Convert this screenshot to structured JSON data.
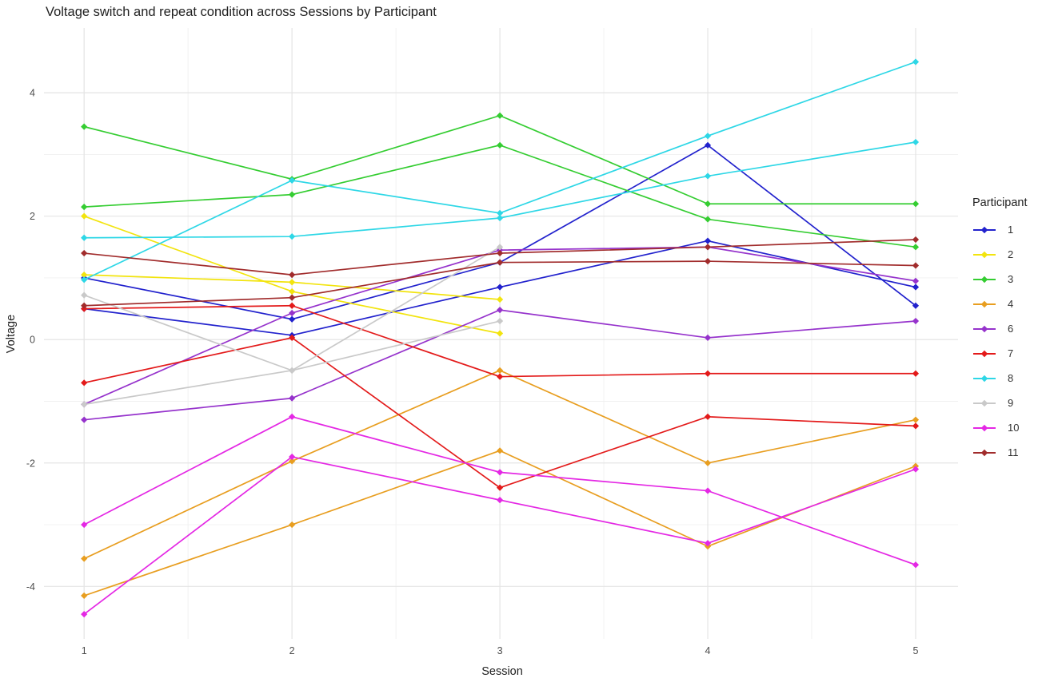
{
  "title": "Voltage switch and repeat condition across Sessions by Participant",
  "chart_data": {
    "type": "line",
    "title": "Voltage switch and repeat condition across Sessions by Participant",
    "xlabel": "Session",
    "ylabel": "Voltage",
    "legend_title": "Participant",
    "legend_position": "right",
    "grid": "on",
    "background": "#ffffff",
    "x": [
      1,
      2,
      3,
      4,
      5
    ],
    "xlim": [
      0.807,
      5.204
    ],
    "ylim": [
      -4.85,
      5.05
    ],
    "xticks_major": [
      1,
      2,
      3,
      4,
      5
    ],
    "xticks_minor": [
      1.5,
      2.5,
      3.5,
      4.5
    ],
    "yticks_major": [
      -4,
      -2,
      0,
      2,
      4
    ],
    "yticks_minor": [
      -3,
      -1,
      1,
      3
    ],
    "marker": "diamond",
    "participants": [
      {
        "id": "1",
        "color": "#2222cd"
      },
      {
        "id": "2",
        "color": "#f2e40e"
      },
      {
        "id": "3",
        "color": "#35cd32"
      },
      {
        "id": "4",
        "color": "#e89e20"
      },
      {
        "id": "6",
        "color": "#9633cc"
      },
      {
        "id": "7",
        "color": "#e31a1a"
      },
      {
        "id": "8",
        "color": "#2ed7e6"
      },
      {
        "id": "9",
        "color": "#c9c9c9"
      },
      {
        "id": "10",
        "color": "#e428e4"
      },
      {
        "id": "11",
        "color": "#a12c2c"
      }
    ],
    "series": [
      {
        "participant": "1",
        "condition": "switch",
        "values": [
          1.0,
          0.33,
          1.25,
          3.15,
          0.55
        ]
      },
      {
        "participant": "1",
        "condition": "repeat",
        "values": [
          0.5,
          0.07,
          0.85,
          1.6,
          0.85
        ]
      },
      {
        "participant": "2",
        "condition": "switch",
        "values": [
          2.0,
          0.78,
          0.1,
          null,
          null
        ]
      },
      {
        "participant": "2",
        "condition": "repeat",
        "values": [
          1.05,
          0.93,
          0.65,
          null,
          null
        ]
      },
      {
        "participant": "3",
        "condition": "switch",
        "values": [
          3.45,
          2.6,
          3.63,
          2.2,
          2.2
        ]
      },
      {
        "participant": "3",
        "condition": "repeat",
        "values": [
          2.15,
          2.35,
          3.15,
          1.95,
          1.5
        ]
      },
      {
        "participant": "4",
        "condition": "switch",
        "values": [
          -3.55,
          -1.97,
          -0.5,
          -2.0,
          -1.3
        ]
      },
      {
        "participant": "4",
        "condition": "repeat",
        "values": [
          -4.15,
          -3.0,
          -1.8,
          -3.35,
          -2.05
        ]
      },
      {
        "participant": "6",
        "condition": "switch",
        "values": [
          -1.05,
          0.43,
          1.45,
          1.5,
          0.95
        ]
      },
      {
        "participant": "6",
        "condition": "repeat",
        "values": [
          -1.3,
          -0.95,
          0.48,
          0.03,
          0.3
        ]
      },
      {
        "participant": "7",
        "condition": "switch",
        "values": [
          0.5,
          0.55,
          -0.6,
          -0.55,
          -0.55
        ]
      },
      {
        "participant": "7",
        "condition": "repeat",
        "values": [
          -0.7,
          0.03,
          -2.4,
          -1.25,
          -1.4
        ]
      },
      {
        "participant": "8",
        "condition": "switch",
        "values": [
          1.65,
          1.67,
          1.97,
          2.65,
          3.2
        ]
      },
      {
        "participant": "8",
        "condition": "repeat",
        "values": [
          0.97,
          2.58,
          2.05,
          3.3,
          4.5
        ]
      },
      {
        "participant": "9",
        "condition": "switch",
        "values": [
          0.72,
          -0.5,
          0.3,
          null,
          null
        ]
      },
      {
        "participant": "9",
        "condition": "repeat",
        "values": [
          -1.05,
          -0.5,
          1.5,
          null,
          null
        ]
      },
      {
        "participant": "10",
        "condition": "switch",
        "values": [
          -3.0,
          -1.25,
          -2.15,
          -2.45,
          -3.65
        ]
      },
      {
        "participant": "10",
        "condition": "repeat",
        "values": [
          -4.45,
          -1.9,
          -2.6,
          -3.3,
          -2.1
        ]
      },
      {
        "participant": "11",
        "condition": "switch",
        "values": [
          1.4,
          1.05,
          1.4,
          1.5,
          1.62
        ]
      },
      {
        "participant": "11",
        "condition": "repeat",
        "values": [
          0.55,
          0.68,
          1.25,
          1.27,
          1.2
        ]
      }
    ]
  }
}
